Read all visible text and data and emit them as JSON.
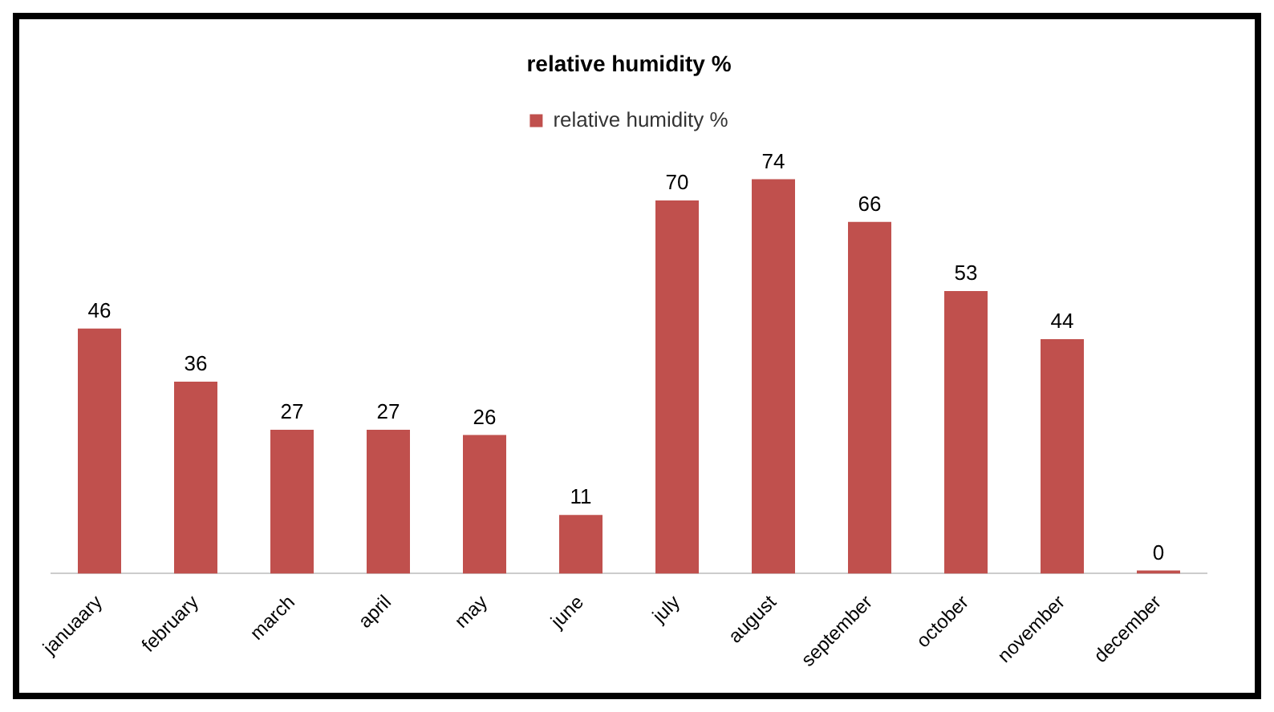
{
  "chart_data": {
    "type": "bar",
    "title": "relative humidity %",
    "categories": [
      "januaary",
      "february",
      "march",
      "april",
      "may",
      "june",
      "july",
      "august",
      "september",
      "october",
      "november",
      "december"
    ],
    "series": [
      {
        "name": "relative humidity %",
        "color": "#c0504d",
        "values": [
          46,
          36,
          27,
          27,
          26,
          11,
          70,
          74,
          66,
          53,
          44,
          0
        ]
      }
    ],
    "data_labels": true,
    "legend": "top",
    "grid": false
  }
}
